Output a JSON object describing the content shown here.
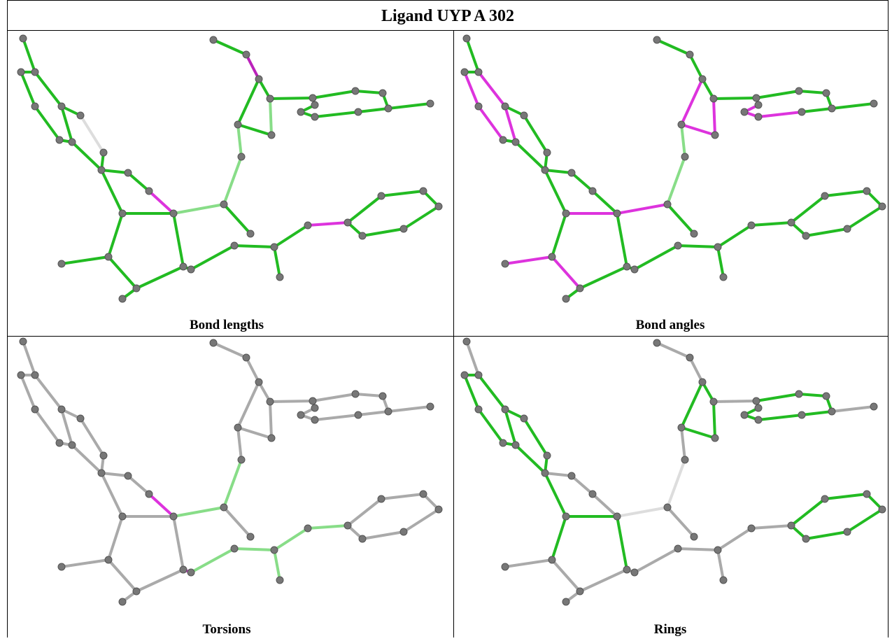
{
  "title": "Ligand UYP A 302",
  "panels": [
    {
      "label": "Bond lengths"
    },
    {
      "label": "Bond angles"
    },
    {
      "label": "Torsions"
    },
    {
      "label": "Rings"
    }
  ]
}
